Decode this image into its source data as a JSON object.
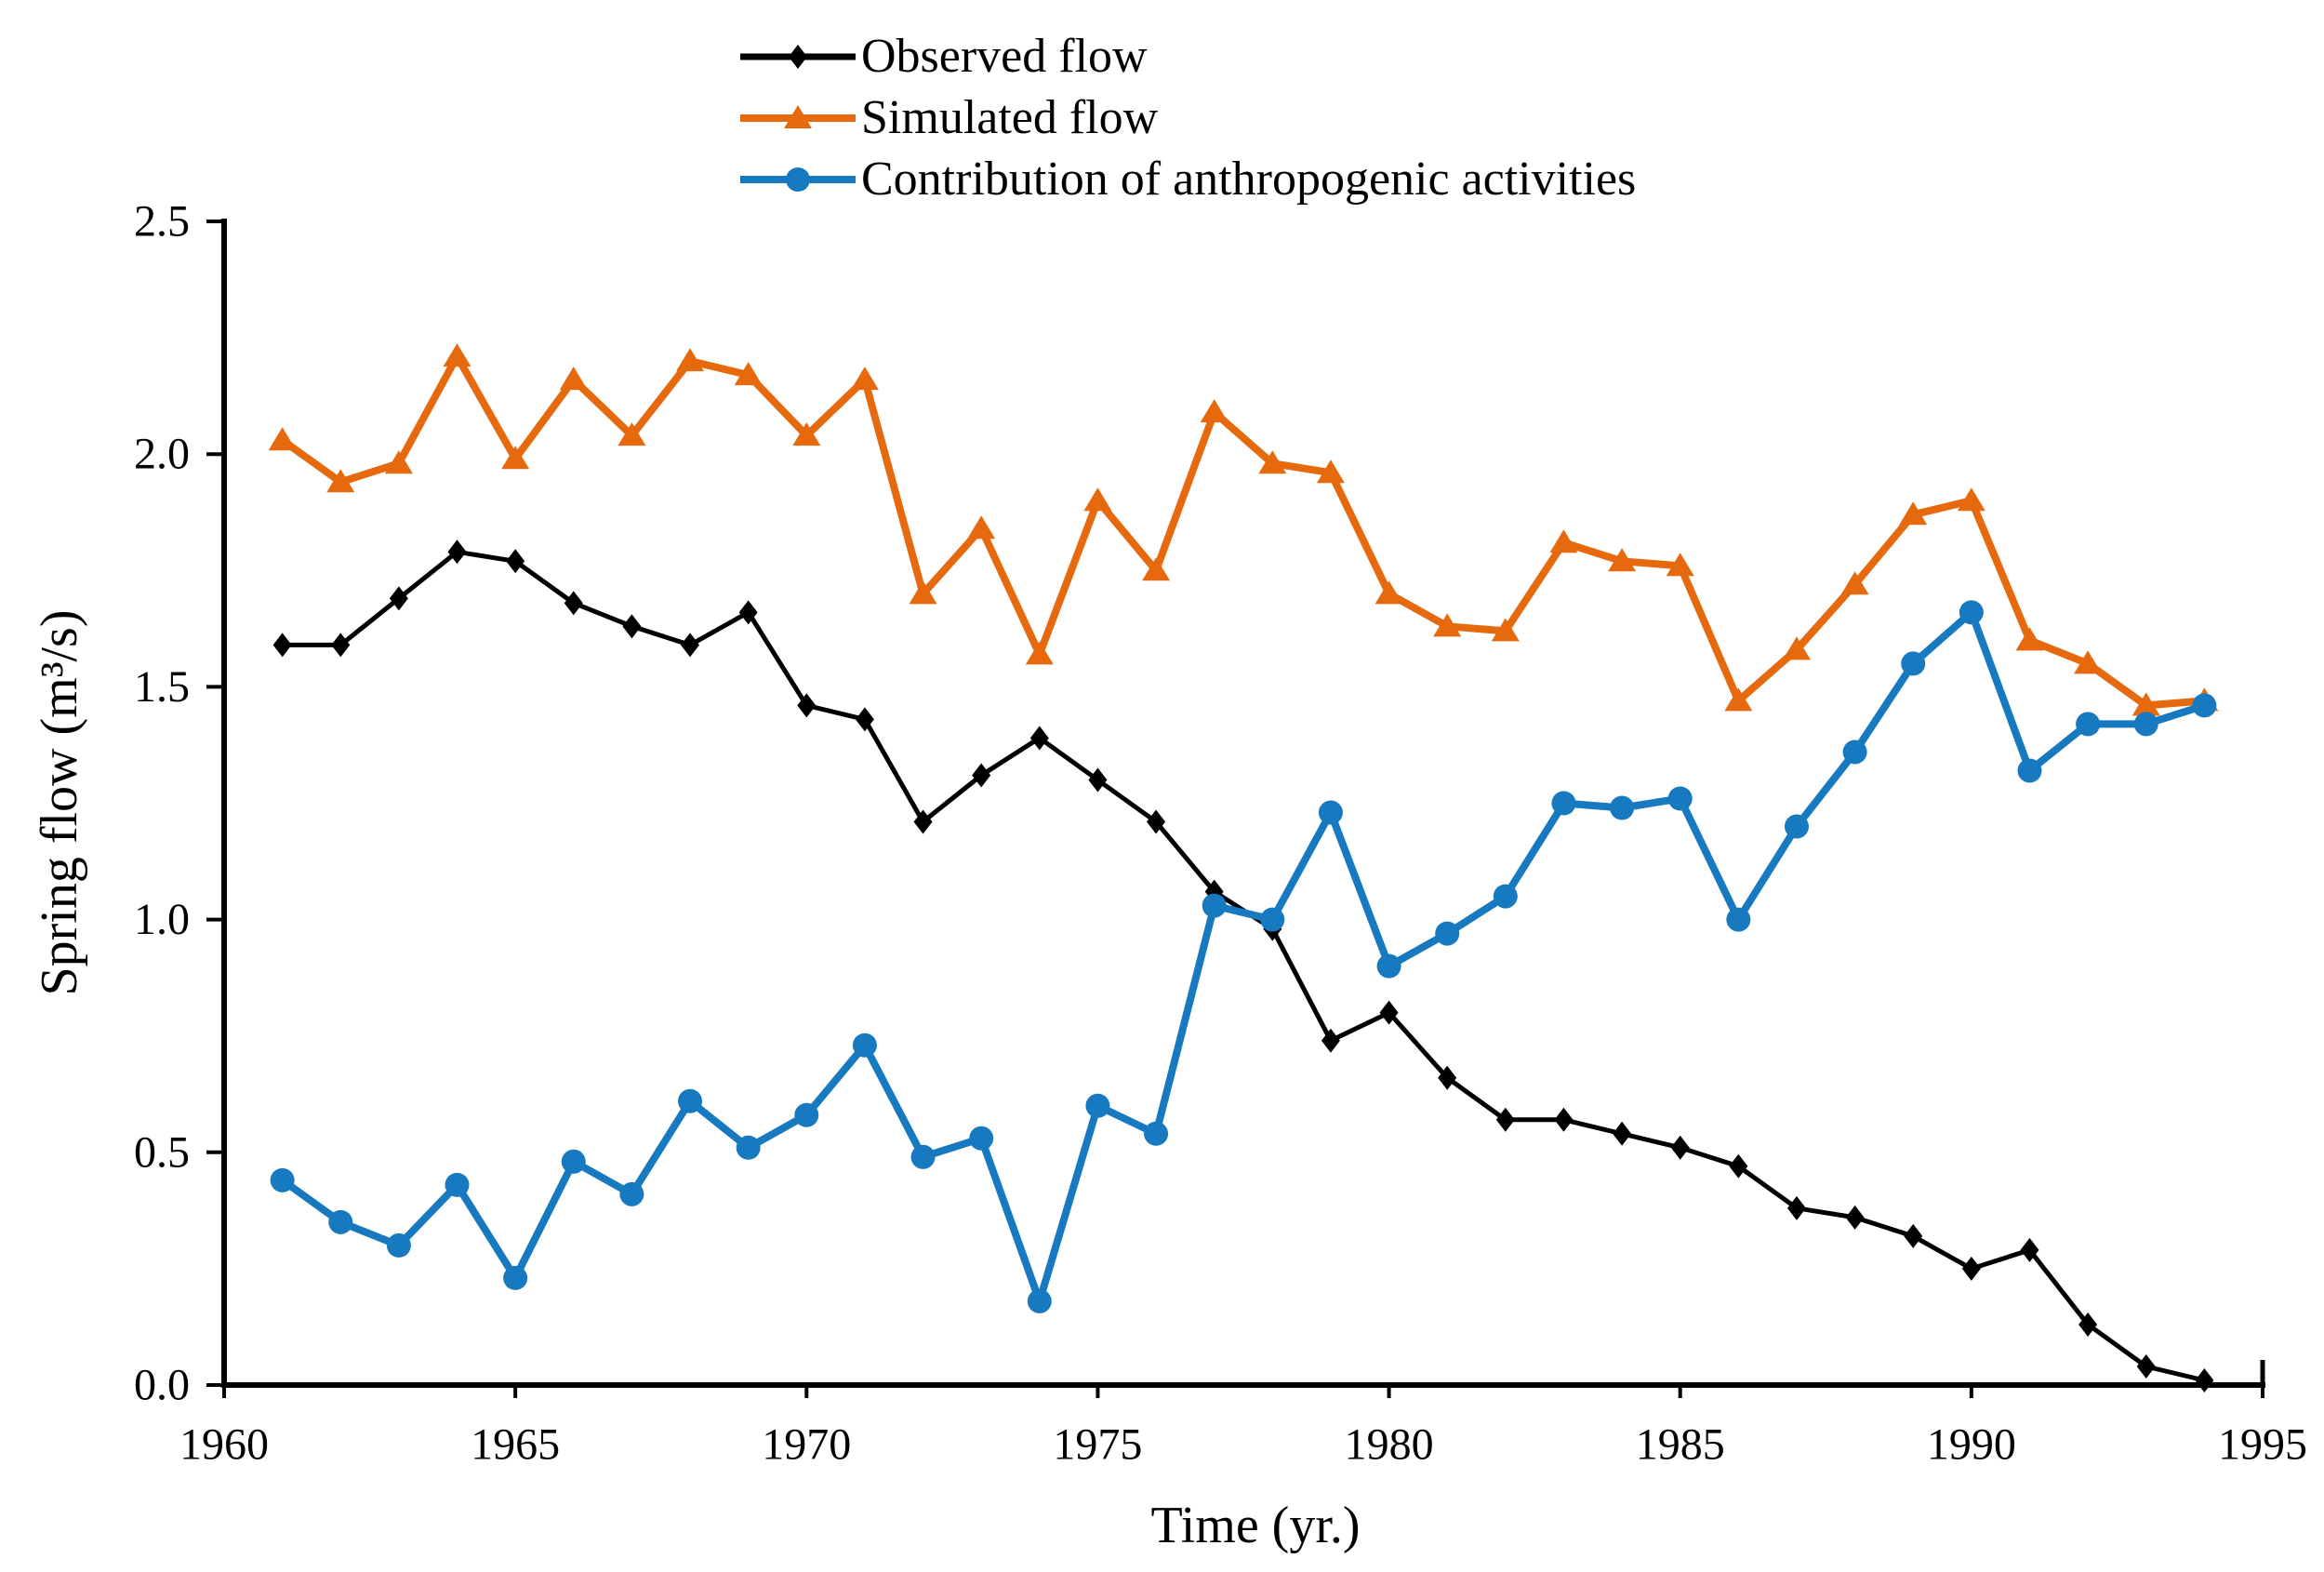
{
  "chart_data": {
    "type": "line",
    "title": "",
    "xlabel": "Time (yr.)",
    "ylabel": "Spring flow (m³/s)",
    "xlim": [
      1960,
      1995
    ],
    "ylim": [
      0.0,
      2.5
    ],
    "xticks": [
      1960,
      1965,
      1970,
      1975,
      1980,
      1985,
      1990,
      1995
    ],
    "yticks": [
      0.0,
      0.5,
      1.0,
      1.5,
      2.0,
      2.5
    ],
    "ytick_labels": [
      "0.0",
      "0.5",
      "1.0",
      "1.5",
      "2.0",
      "2.5"
    ],
    "grid": false,
    "legend_position": "top-center",
    "x": [
      1961,
      1962,
      1963,
      1964,
      1965,
      1966,
      1967,
      1968,
      1969,
      1970,
      1971,
      1972,
      1973,
      1974,
      1975,
      1976,
      1977,
      1978,
      1979,
      1980,
      1981,
      1982,
      1983,
      1984,
      1985,
      1986,
      1987,
      1988,
      1989,
      1990,
      1991,
      1992,
      1993,
      1994
    ],
    "series": [
      {
        "name": "Observed flow",
        "color": "#000000",
        "marker": "diamond",
        "line_width": 5,
        "values": [
          1.59,
          1.59,
          1.69,
          1.79,
          1.77,
          1.68,
          1.63,
          1.59,
          1.66,
          1.46,
          1.43,
          1.21,
          1.31,
          1.39,
          1.3,
          1.21,
          1.06,
          0.98,
          0.74,
          0.8,
          0.66,
          0.57,
          0.57,
          0.54,
          0.51,
          0.47,
          0.38,
          0.36,
          0.32,
          0.25,
          0.29,
          0.13,
          0.04,
          0.01
        ]
      },
      {
        "name": "Simulated flow",
        "color": "#E6690E",
        "marker": "triangle",
        "line_width": 8,
        "values": [
          2.03,
          1.94,
          1.98,
          2.21,
          1.99,
          2.16,
          2.04,
          2.2,
          2.17,
          2.04,
          2.16,
          1.7,
          1.84,
          1.57,
          1.9,
          1.75,
          2.09,
          1.98,
          1.96,
          1.7,
          1.63,
          1.62,
          1.81,
          1.77,
          1.76,
          1.47,
          1.58,
          1.72,
          1.87,
          1.9,
          1.6,
          1.55,
          1.46,
          1.47
        ]
      },
      {
        "name": "Contribution of anthropogenic activities",
        "color": "#1779BF",
        "marker": "circle",
        "line_width": 8,
        "values": [
          0.44,
          0.35,
          0.3,
          0.43,
          0.23,
          0.48,
          0.41,
          0.61,
          0.51,
          0.58,
          0.73,
          0.49,
          0.53,
          0.18,
          0.6,
          0.54,
          1.03,
          1.0,
          1.23,
          0.9,
          0.97,
          1.05,
          1.25,
          1.24,
          1.26,
          1.0,
          1.2,
          1.36,
          1.55,
          1.66,
          1.32,
          1.42,
          1.42,
          1.46
        ]
      }
    ]
  }
}
